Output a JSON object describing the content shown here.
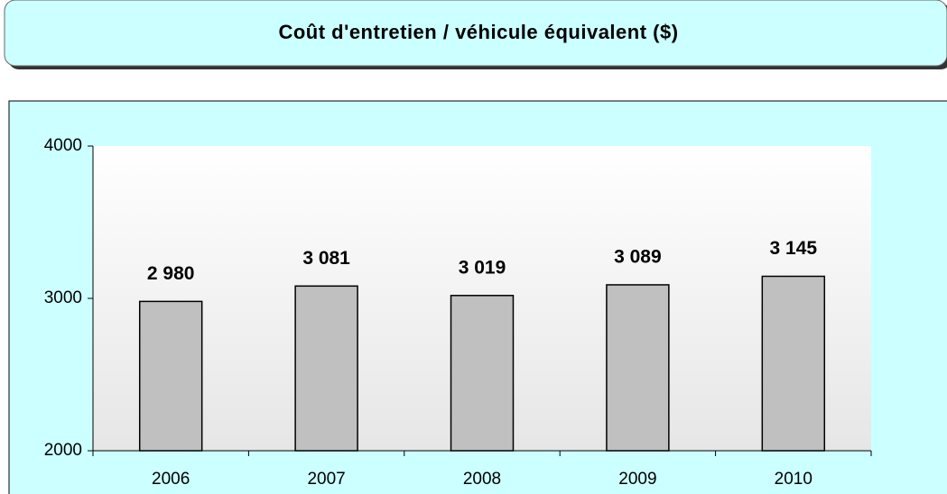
{
  "chart_data": {
    "type": "bar",
    "title": "Coût d'entretien / véhicule équivalent ($)",
    "categories": [
      "2006",
      "2007",
      "2008",
      "2009",
      "2010"
    ],
    "values": [
      2980,
      3081,
      3019,
      3089,
      3145
    ],
    "value_labels": [
      "2 980",
      "3 081",
      "3 019",
      "3 089",
      "3 145"
    ],
    "color": "#c0c0c0",
    "ylim": [
      2000,
      4000
    ],
    "yticks": [
      2000,
      3000,
      4000
    ]
  }
}
